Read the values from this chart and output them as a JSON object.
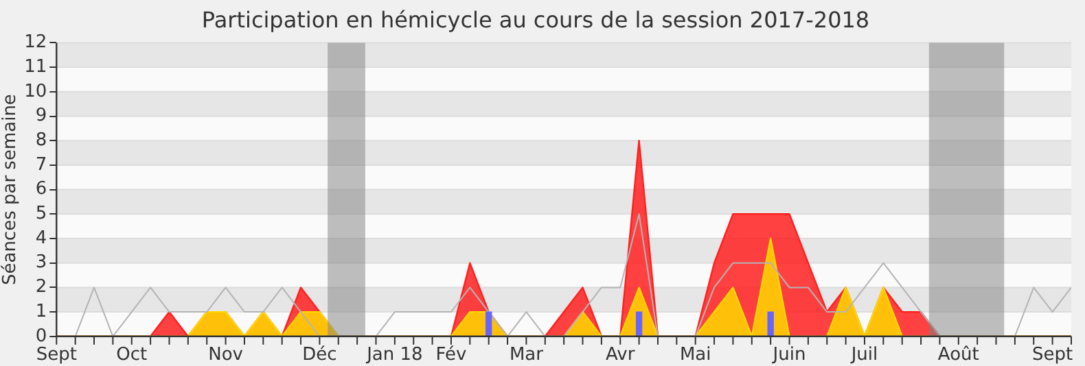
{
  "chart_data": {
    "type": "area",
    "title": "Participation en hémicycle au cours de la session 2017-2018",
    "ylabel": "Séances par semaine",
    "x": [
      "2017-09-11",
      "2017-09-18",
      "2017-09-25",
      "2017-10-02",
      "2017-10-09",
      "2017-10-16",
      "2017-10-23",
      "2017-10-30",
      "2017-11-06",
      "2017-11-13",
      "2017-11-20",
      "2017-11-27",
      "2017-12-04",
      "2017-12-11",
      "2017-12-18",
      "2017-12-25",
      "2018-01-01",
      "2018-01-08",
      "2018-01-15",
      "2018-01-22",
      "2018-01-29",
      "2018-02-05",
      "2018-02-12",
      "2018-02-19",
      "2018-02-26",
      "2018-03-05",
      "2018-03-12",
      "2018-03-19",
      "2018-03-26",
      "2018-04-02",
      "2018-04-09",
      "2018-04-16",
      "2018-04-23",
      "2018-04-30",
      "2018-05-07",
      "2018-05-14",
      "2018-05-21",
      "2018-05-28",
      "2018-06-04",
      "2018-06-11",
      "2018-06-18",
      "2018-06-25",
      "2018-07-02",
      "2018-07-09",
      "2018-07-16",
      "2018-07-23",
      "2018-07-30",
      "2018-08-06",
      "2018-08-13",
      "2018-08-20",
      "2018-08-27",
      "2018-09-03",
      "2018-09-10",
      "2018-09-17",
      "2018-09-24"
    ],
    "series": [
      {
        "type": "line",
        "color": "#b4b4b4",
        "values": [
          0,
          0,
          2,
          0,
          1,
          2,
          1,
          1,
          1,
          2,
          1,
          1,
          2,
          1,
          0,
          0,
          0,
          0,
          1,
          1,
          1,
          1,
          2,
          1,
          0,
          1,
          0,
          0,
          1,
          2,
          2,
          5,
          0,
          0,
          0,
          2,
          3,
          3,
          3,
          2,
          2,
          1,
          1,
          2,
          3,
          2,
          1,
          0,
          0,
          0,
          0,
          0,
          2,
          1,
          2
        ]
      },
      {
        "color": "#ff2020",
        "values": [
          0,
          0,
          0,
          0,
          0,
          0,
          1,
          0,
          1,
          1,
          0,
          1,
          0,
          2,
          1,
          0,
          0,
          0,
          0,
          0,
          0,
          0,
          3,
          1,
          0,
          0,
          0,
          1,
          2,
          0,
          0,
          8,
          0,
          0,
          0,
          3,
          5,
          5,
          5,
          5,
          3,
          1,
          2,
          0,
          2,
          1,
          1,
          0,
          0,
          0,
          0,
          0,
          0,
          0,
          0
        ]
      },
      {
        "color": "#ffd700",
        "values": [
          0,
          0,
          0,
          0,
          0,
          0,
          0,
          0,
          1,
          1,
          0,
          1,
          0,
          1,
          1,
          0,
          0,
          0,
          0,
          0,
          0,
          0,
          1,
          1,
          0,
          0,
          0,
          0,
          1,
          0,
          0,
          2,
          0,
          0,
          0,
          1,
          2,
          0,
          4,
          0,
          0,
          0,
          2,
          0,
          2,
          0,
          0,
          0,
          0,
          0,
          0,
          0,
          0,
          0,
          0
        ]
      },
      {
        "type": "bar",
        "color": "#6666ff",
        "values": [
          null,
          null,
          null,
          null,
          null,
          null,
          null,
          null,
          null,
          null,
          null,
          null,
          null,
          null,
          null,
          null,
          null,
          null,
          null,
          null,
          null,
          null,
          null,
          1,
          null,
          null,
          null,
          null,
          null,
          null,
          null,
          1,
          null,
          null,
          null,
          null,
          null,
          null,
          1,
          null,
          null,
          null,
          null,
          null,
          null,
          null,
          null,
          null,
          null,
          null,
          null,
          null,
          null,
          null,
          null
        ]
      }
    ],
    "xlim": [
      "2017-09-11",
      "2018-09-24"
    ],
    "xticks": [
      {
        "value": "2017-09-11",
        "label": "Sept"
      },
      {
        "value": "2017-09-18",
        "label": null
      },
      {
        "value": "2017-09-25",
        "label": null
      },
      {
        "value": "2017-10-02",
        "label": null
      },
      {
        "value": "2017-10-09",
        "label": "Oct"
      },
      {
        "value": "2017-10-16",
        "label": null
      },
      {
        "value": "2017-10-23",
        "label": null
      },
      {
        "value": "2017-10-30",
        "label": null
      },
      {
        "value": "2017-11-06",
        "label": null
      },
      {
        "value": "2017-11-13",
        "label": "Nov"
      },
      {
        "value": "2017-11-20",
        "label": null
      },
      {
        "value": "2017-11-27",
        "label": null
      },
      {
        "value": "2017-12-04",
        "label": null
      },
      {
        "value": "2017-12-11",
        "label": null
      },
      {
        "value": "2017-12-18",
        "label": "Déc"
      },
      {
        "value": "2017-12-25",
        "label": null
      },
      {
        "value": "2018-01-01",
        "label": null
      },
      {
        "value": "2018-01-08",
        "label": null
      },
      {
        "value": "2018-01-15",
        "label": "Jan 18"
      },
      {
        "value": "2018-01-22",
        "label": null
      },
      {
        "value": "2018-01-29",
        "label": null
      },
      {
        "value": "2018-02-05",
        "label": "Fév"
      },
      {
        "value": "2018-02-12",
        "label": null
      },
      {
        "value": "2018-02-19",
        "label": null
      },
      {
        "value": "2018-02-26",
        "label": null
      },
      {
        "value": "2018-03-05",
        "label": "Mar"
      },
      {
        "value": "2018-03-12",
        "label": null
      },
      {
        "value": "2018-03-19",
        "label": null
      },
      {
        "value": "2018-03-26",
        "label": null
      },
      {
        "value": "2018-04-02",
        "label": null
      },
      {
        "value": "2018-04-09",
        "label": "Avr"
      },
      {
        "value": "2018-04-16",
        "label": null
      },
      {
        "value": "2018-04-23",
        "label": null
      },
      {
        "value": "2018-04-30",
        "label": null
      },
      {
        "value": "2018-05-07",
        "label": "Mai"
      },
      {
        "value": "2018-05-14",
        "label": null
      },
      {
        "value": "2018-05-21",
        "label": null
      },
      {
        "value": "2018-05-28",
        "label": null
      },
      {
        "value": "2018-06-04",
        "label": null
      },
      {
        "value": "2018-06-11",
        "label": "Juin"
      },
      {
        "value": "2018-06-18",
        "label": null
      },
      {
        "value": "2018-06-25",
        "label": null
      },
      {
        "value": "2018-07-02",
        "label": null
      },
      {
        "value": "2018-07-09",
        "label": "Juil"
      },
      {
        "value": "2018-07-16",
        "label": null
      },
      {
        "value": "2018-07-23",
        "label": null
      },
      {
        "value": "2018-07-30",
        "label": null
      },
      {
        "value": "2018-08-06",
        "label": null
      },
      {
        "value": "2018-08-13",
        "label": "Août"
      },
      {
        "value": "2018-08-20",
        "label": null
      },
      {
        "value": "2018-08-27",
        "label": null
      },
      {
        "value": "2018-09-03",
        "label": null
      },
      {
        "value": "2018-09-10",
        "label": null
      },
      {
        "value": "2018-09-17",
        "label": "Sept"
      },
      {
        "value": "2018-09-24",
        "label": null
      }
    ],
    "ylim": [
      0,
      12
    ],
    "yticks": [
      0,
      1,
      2,
      3,
      4,
      5,
      6,
      7,
      8,
      9,
      10,
      11,
      12
    ],
    "bands": [
      {
        "axis": "x",
        "from": "2017-12-21",
        "to": "2018-01-04",
        "color": "#808080"
      },
      {
        "axis": "x",
        "from": "2018-08-02",
        "to": "2018-08-30",
        "color": "#808080"
      }
    ],
    "grid": "y",
    "legend": false
  }
}
